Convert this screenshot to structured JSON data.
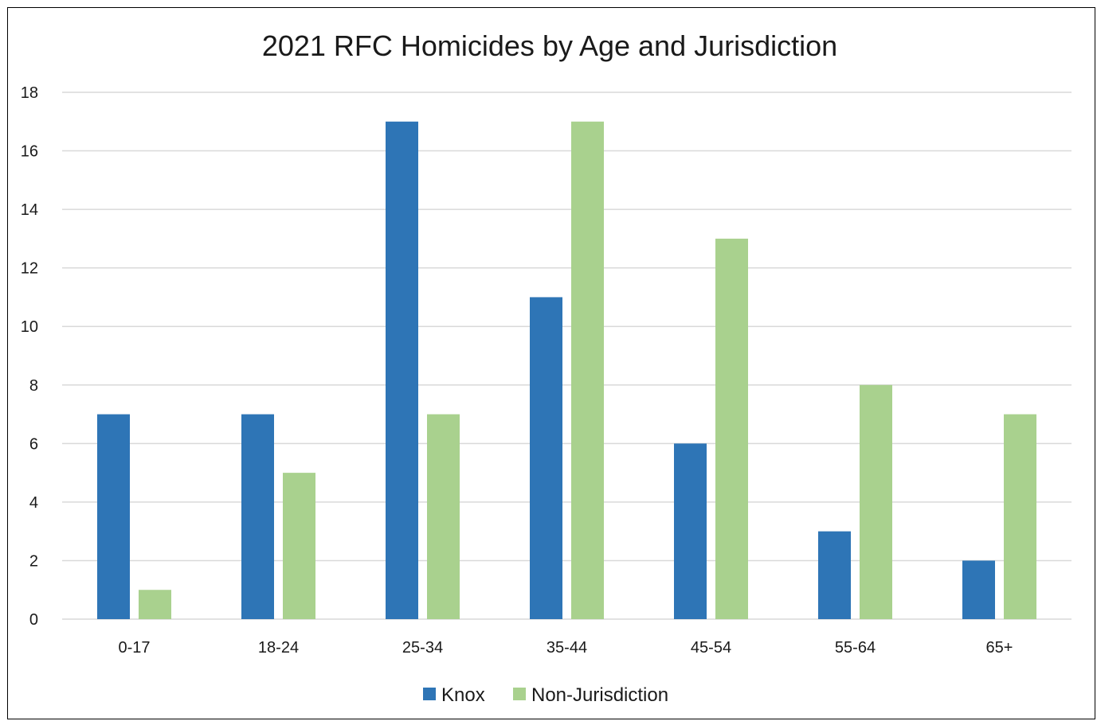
{
  "chart_data": {
    "type": "bar",
    "title": "2021 RFC Homicides by Age and Jurisdiction",
    "xlabel": "",
    "ylabel": "",
    "categories": [
      "0-17",
      "18-24",
      "25-34",
      "35-44",
      "45-54",
      "55-64",
      "65+"
    ],
    "series": [
      {
        "name": "Knox",
        "color": "#2E75B6",
        "values": [
          7,
          7,
          17,
          11,
          6,
          3,
          2
        ]
      },
      {
        "name": "Non-Jurisdiction",
        "color": "#A9D18E",
        "values": [
          1,
          5,
          7,
          17,
          13,
          8,
          7
        ]
      }
    ],
    "ylim": [
      0,
      18
    ],
    "yticks": [
      0,
      2,
      4,
      6,
      8,
      10,
      12,
      14,
      16,
      18
    ],
    "grid": true,
    "gridline_color": "#D9D9D9",
    "legend_position": "bottom"
  }
}
